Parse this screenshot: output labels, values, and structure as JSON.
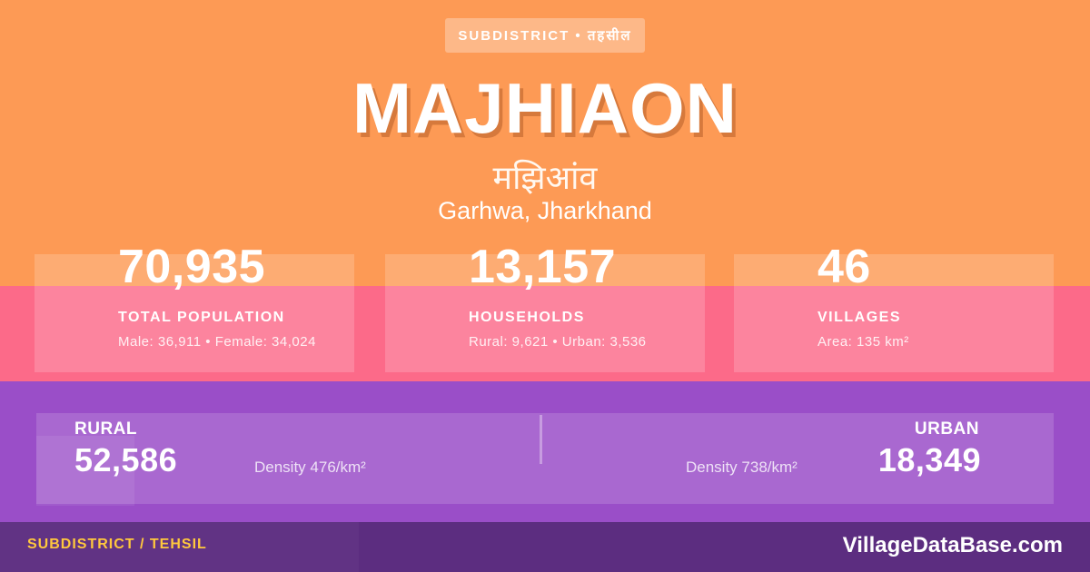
{
  "badge": {
    "label": "SUBDISTRICT • तहसील"
  },
  "header": {
    "title": "MAJHIAON",
    "title_hindi": "मझिआंव",
    "location": "Garhwa, Jharkhand"
  },
  "stats": [
    {
      "value": "70,935",
      "label": "TOTAL POPULATION",
      "detail": "Male: 36,911 • Female: 34,024"
    },
    {
      "value": "13,157",
      "label": "HOUSEHOLDS",
      "detail": "Rural: 9,621 • Urban: 3,536"
    },
    {
      "value": "46",
      "label": "VILLAGES",
      "detail": "Area: 135 km²"
    }
  ],
  "breakdown": {
    "rural": {
      "label": "RURAL",
      "value": "52,586",
      "density": "Density 476/km²"
    },
    "urban": {
      "label": "URBAN",
      "value": "18,349",
      "density": "Density 738/km²"
    }
  },
  "footer": {
    "left": "SUBDISTRICT / TEHSIL",
    "right": "VillageDataBase.com"
  },
  "colors": {
    "orange_band": "#FD9A55",
    "pink_band": "#FC6A89",
    "purple_band": "#9A4EC8",
    "footer_band": "#5C2D80",
    "accent_yellow": "#FFC83D",
    "text": "#FFFFFF"
  }
}
